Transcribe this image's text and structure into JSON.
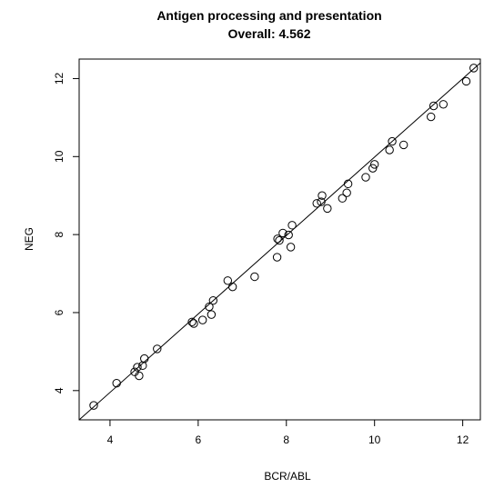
{
  "chart_data": {
    "type": "scatter",
    "title": "Antigen processing and presentation",
    "subtitle": "Overall: 4.562",
    "xlabel": "BCR/ABL",
    "ylabel": "NEG",
    "xlim": [
      3.3,
      12.4
    ],
    "ylim": [
      3.25,
      12.5
    ],
    "xticks": [
      "4",
      "6",
      "8",
      "10",
      "12"
    ],
    "yticks": [
      "4",
      "6",
      "8",
      "10",
      "12"
    ],
    "xtick_values": [
      4,
      6,
      8,
      10,
      12
    ],
    "ytick_values": [
      4,
      6,
      8,
      10,
      12
    ],
    "grid": false,
    "reference_line": {
      "x": [
        3.3,
        12.4
      ],
      "y": [
        3.25,
        12.4
      ]
    },
    "points": [
      {
        "x": 3.63,
        "y": 3.62
      },
      {
        "x": 4.15,
        "y": 4.19
      },
      {
        "x": 4.56,
        "y": 4.48
      },
      {
        "x": 4.62,
        "y": 4.6
      },
      {
        "x": 4.66,
        "y": 4.38
      },
      {
        "x": 4.74,
        "y": 4.64
      },
      {
        "x": 4.78,
        "y": 4.82
      },
      {
        "x": 5.07,
        "y": 5.07
      },
      {
        "x": 5.86,
        "y": 5.76
      },
      {
        "x": 5.9,
        "y": 5.72
      },
      {
        "x": 6.1,
        "y": 5.81
      },
      {
        "x": 6.25,
        "y": 6.15
      },
      {
        "x": 6.3,
        "y": 5.95
      },
      {
        "x": 6.34,
        "y": 6.31
      },
      {
        "x": 6.67,
        "y": 6.82
      },
      {
        "x": 6.78,
        "y": 6.66
      },
      {
        "x": 7.28,
        "y": 6.92
      },
      {
        "x": 7.79,
        "y": 7.42
      },
      {
        "x": 7.8,
        "y": 7.89
      },
      {
        "x": 7.84,
        "y": 7.85
      },
      {
        "x": 7.92,
        "y": 8.04
      },
      {
        "x": 8.05,
        "y": 7.99
      },
      {
        "x": 8.1,
        "y": 7.68
      },
      {
        "x": 8.13,
        "y": 8.24
      },
      {
        "x": 8.69,
        "y": 8.8
      },
      {
        "x": 8.79,
        "y": 8.84
      },
      {
        "x": 8.81,
        "y": 9.0
      },
      {
        "x": 8.93,
        "y": 8.67
      },
      {
        "x": 9.27,
        "y": 8.93
      },
      {
        "x": 9.37,
        "y": 9.07
      },
      {
        "x": 9.4,
        "y": 9.3
      },
      {
        "x": 9.8,
        "y": 9.47
      },
      {
        "x": 9.96,
        "y": 9.7
      },
      {
        "x": 10.0,
        "y": 9.8
      },
      {
        "x": 10.34,
        "y": 10.17
      },
      {
        "x": 10.4,
        "y": 10.39
      },
      {
        "x": 10.66,
        "y": 10.3
      },
      {
        "x": 11.28,
        "y": 11.02
      },
      {
        "x": 11.34,
        "y": 11.3
      },
      {
        "x": 11.56,
        "y": 11.34
      },
      {
        "x": 12.08,
        "y": 11.93
      },
      {
        "x": 12.25,
        "y": 12.27
      }
    ]
  }
}
